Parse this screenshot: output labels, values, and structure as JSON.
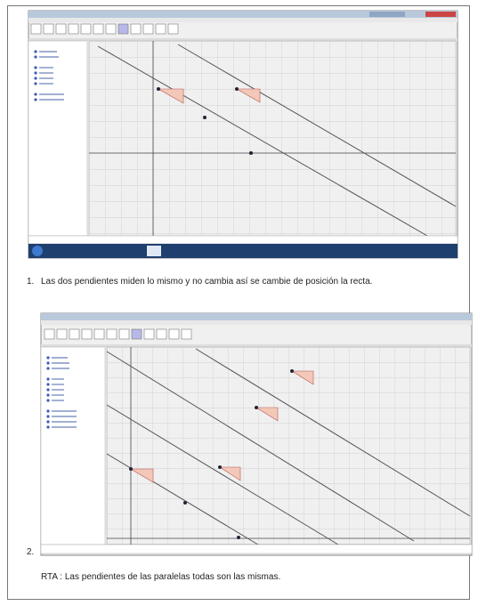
{
  "items": [
    {
      "number": "1.",
      "text": "Las dos pendientes miden lo mismo y no cambia así se cambie de posición la recta."
    },
    {
      "number": "2."
    }
  ],
  "answer": "RTA : Las pendientes de las paralelas todas son las mismas."
}
